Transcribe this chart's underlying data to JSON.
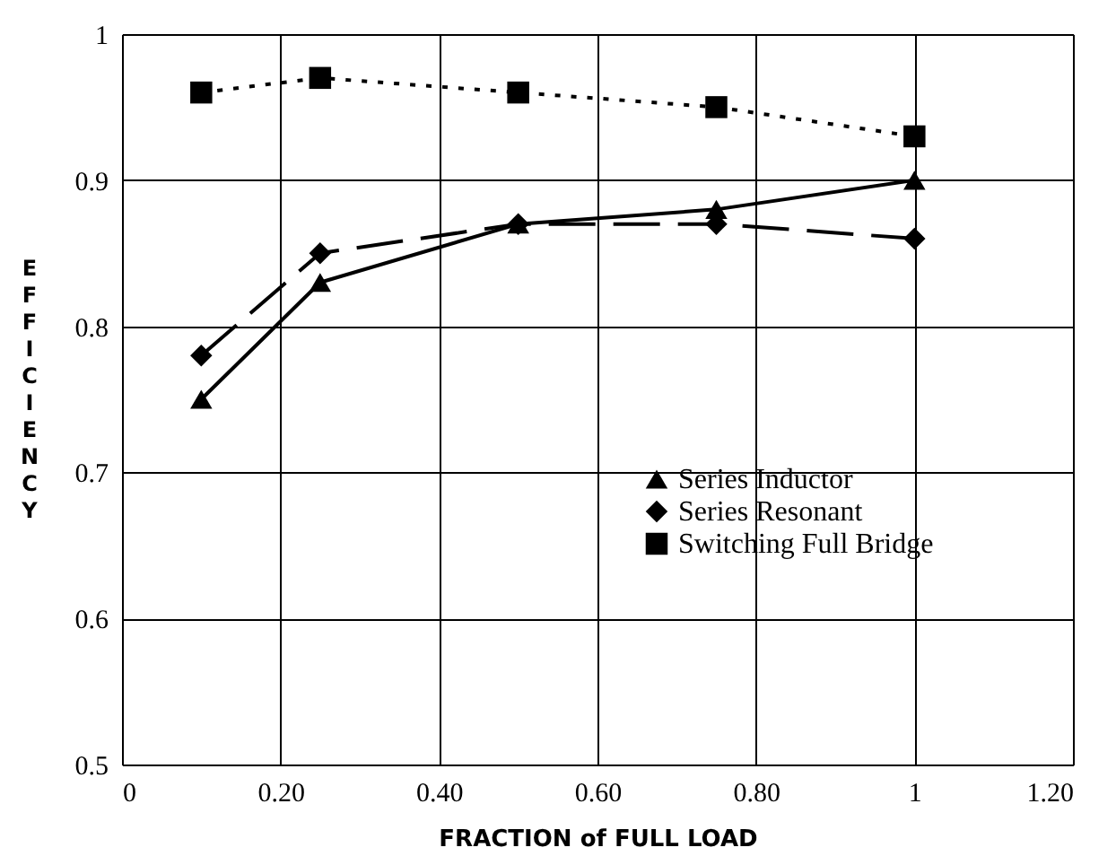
{
  "chart_data": {
    "type": "line",
    "xlabel": "FRACTION of FULL LOAD",
    "ylabel": "EFFICIENCY",
    "x": [
      0.1,
      0.25,
      0.5,
      0.75,
      1
    ],
    "series": [
      {
        "name": "Series Inductor",
        "color": "#000000",
        "marker": "triangle",
        "line_style": "solid",
        "values": [
          0.75,
          0.83,
          0.87,
          0.88,
          0.9
        ]
      },
      {
        "name": "Series Resonant",
        "color": "#000000",
        "marker": "diamond",
        "line_style": "dashed",
        "values": [
          0.78,
          0.85,
          0.87,
          0.87,
          0.86
        ]
      },
      {
        "name": "Switching Full Bridge",
        "color": "#000000",
        "marker": "square",
        "line_style": "dotted",
        "values": [
          0.96,
          0.97,
          0.96,
          0.95,
          0.93
        ]
      }
    ],
    "xlim": [
      0,
      1.2
    ],
    "xticks": [
      0,
      {
        "value": 0.2,
        "label": "0.20"
      },
      {
        "value": 0.4,
        "label": "0.40"
      },
      {
        "value": 0.6,
        "label": "0.60"
      },
      {
        "value": 0.8,
        "label": "0.80"
      },
      1,
      {
        "value": 1.2,
        "label": "1.20"
      }
    ],
    "ylim": [
      0.5,
      1
    ],
    "yticks": [
      0.5,
      0.6,
      0.7,
      0.8,
      0.9,
      1
    ],
    "grid": true,
    "legend": "bottom right"
  }
}
